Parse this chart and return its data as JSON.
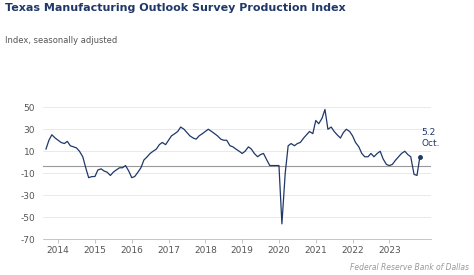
{
  "title": "Texas Manufacturing Outlook Survey Production Index",
  "subtitle": "Index, seasonally adjusted",
  "footer": "Federal Reserve Bank of Dallas",
  "annotation_value": "5.2",
  "annotation_label": "Oct.",
  "line_color": "#1f3869",
  "zero_line_color": "#999999",
  "background_color": "#ffffff",
  "ylim": [
    -70,
    60
  ],
  "yticks": [
    -70,
    -50,
    -30,
    -10,
    10,
    30,
    50
  ],
  "x_start_year": 2013.58,
  "x_end_year": 2023.92,
  "xtick_years": [
    2014,
    2015,
    2016,
    2017,
    2018,
    2019,
    2020,
    2021,
    2022,
    2023
  ],
  "zero_line_y": -3,
  "data": [
    [
      2013.67,
      12
    ],
    [
      2013.75,
      20
    ],
    [
      2013.83,
      25
    ],
    [
      2013.92,
      22
    ],
    [
      2014.0,
      20
    ],
    [
      2014.08,
      18
    ],
    [
      2014.17,
      17
    ],
    [
      2014.25,
      19
    ],
    [
      2014.33,
      15
    ],
    [
      2014.42,
      14
    ],
    [
      2014.5,
      13
    ],
    [
      2014.58,
      10
    ],
    [
      2014.67,
      5
    ],
    [
      2014.75,
      -5
    ],
    [
      2014.83,
      -14
    ],
    [
      2014.92,
      -13
    ],
    [
      2015.0,
      -13
    ],
    [
      2015.08,
      -7
    ],
    [
      2015.17,
      -6
    ],
    [
      2015.25,
      -8
    ],
    [
      2015.33,
      -9
    ],
    [
      2015.42,
      -12
    ],
    [
      2015.5,
      -9
    ],
    [
      2015.58,
      -7
    ],
    [
      2015.67,
      -5
    ],
    [
      2015.75,
      -5
    ],
    [
      2015.83,
      -3
    ],
    [
      2015.92,
      -8
    ],
    [
      2016.0,
      -14
    ],
    [
      2016.08,
      -13
    ],
    [
      2016.17,
      -9
    ],
    [
      2016.25,
      -5
    ],
    [
      2016.33,
      2
    ],
    [
      2016.42,
      5
    ],
    [
      2016.5,
      8
    ],
    [
      2016.58,
      10
    ],
    [
      2016.67,
      12
    ],
    [
      2016.75,
      16
    ],
    [
      2016.83,
      18
    ],
    [
      2016.92,
      16
    ],
    [
      2017.0,
      20
    ],
    [
      2017.08,
      24
    ],
    [
      2017.17,
      26
    ],
    [
      2017.25,
      28
    ],
    [
      2017.33,
      32
    ],
    [
      2017.42,
      30
    ],
    [
      2017.5,
      27
    ],
    [
      2017.58,
      24
    ],
    [
      2017.67,
      22
    ],
    [
      2017.75,
      21
    ],
    [
      2017.83,
      24
    ],
    [
      2017.92,
      26
    ],
    [
      2018.0,
      28
    ],
    [
      2018.08,
      30
    ],
    [
      2018.17,
      28
    ],
    [
      2018.25,
      26
    ],
    [
      2018.33,
      24
    ],
    [
      2018.42,
      21
    ],
    [
      2018.5,
      20
    ],
    [
      2018.58,
      20
    ],
    [
      2018.67,
      15
    ],
    [
      2018.75,
      14
    ],
    [
      2018.83,
      12
    ],
    [
      2018.92,
      10
    ],
    [
      2019.0,
      8
    ],
    [
      2019.08,
      10
    ],
    [
      2019.17,
      14
    ],
    [
      2019.25,
      12
    ],
    [
      2019.33,
      8
    ],
    [
      2019.42,
      5
    ],
    [
      2019.5,
      7
    ],
    [
      2019.58,
      8
    ],
    [
      2019.67,
      2
    ],
    [
      2019.75,
      -3
    ],
    [
      2019.83,
      -3
    ],
    [
      2019.92,
      -3
    ],
    [
      2020.0,
      -3
    ],
    [
      2020.08,
      -56
    ],
    [
      2020.17,
      -10
    ],
    [
      2020.25,
      15
    ],
    [
      2020.33,
      17
    ],
    [
      2020.42,
      15
    ],
    [
      2020.5,
      17
    ],
    [
      2020.58,
      18
    ],
    [
      2020.67,
      22
    ],
    [
      2020.75,
      25
    ],
    [
      2020.83,
      28
    ],
    [
      2020.92,
      26
    ],
    [
      2021.0,
      38
    ],
    [
      2021.08,
      35
    ],
    [
      2021.17,
      40
    ],
    [
      2021.25,
      48
    ],
    [
      2021.33,
      30
    ],
    [
      2021.42,
      32
    ],
    [
      2021.5,
      28
    ],
    [
      2021.58,
      25
    ],
    [
      2021.67,
      22
    ],
    [
      2021.75,
      27
    ],
    [
      2021.83,
      30
    ],
    [
      2021.92,
      28
    ],
    [
      2022.0,
      24
    ],
    [
      2022.08,
      18
    ],
    [
      2022.17,
      14
    ],
    [
      2022.25,
      8
    ],
    [
      2022.33,
      5
    ],
    [
      2022.42,
      5
    ],
    [
      2022.5,
      8
    ],
    [
      2022.58,
      5
    ],
    [
      2022.67,
      8
    ],
    [
      2022.75,
      10
    ],
    [
      2022.83,
      3
    ],
    [
      2022.92,
      -2
    ],
    [
      2023.0,
      -3
    ],
    [
      2023.08,
      -2
    ],
    [
      2023.17,
      2
    ],
    [
      2023.25,
      5
    ],
    [
      2023.33,
      8
    ],
    [
      2023.42,
      10
    ],
    [
      2023.5,
      7
    ],
    [
      2023.58,
      5
    ],
    [
      2023.67,
      -11
    ],
    [
      2023.75,
      -12
    ],
    [
      2023.83,
      5.2
    ]
  ]
}
